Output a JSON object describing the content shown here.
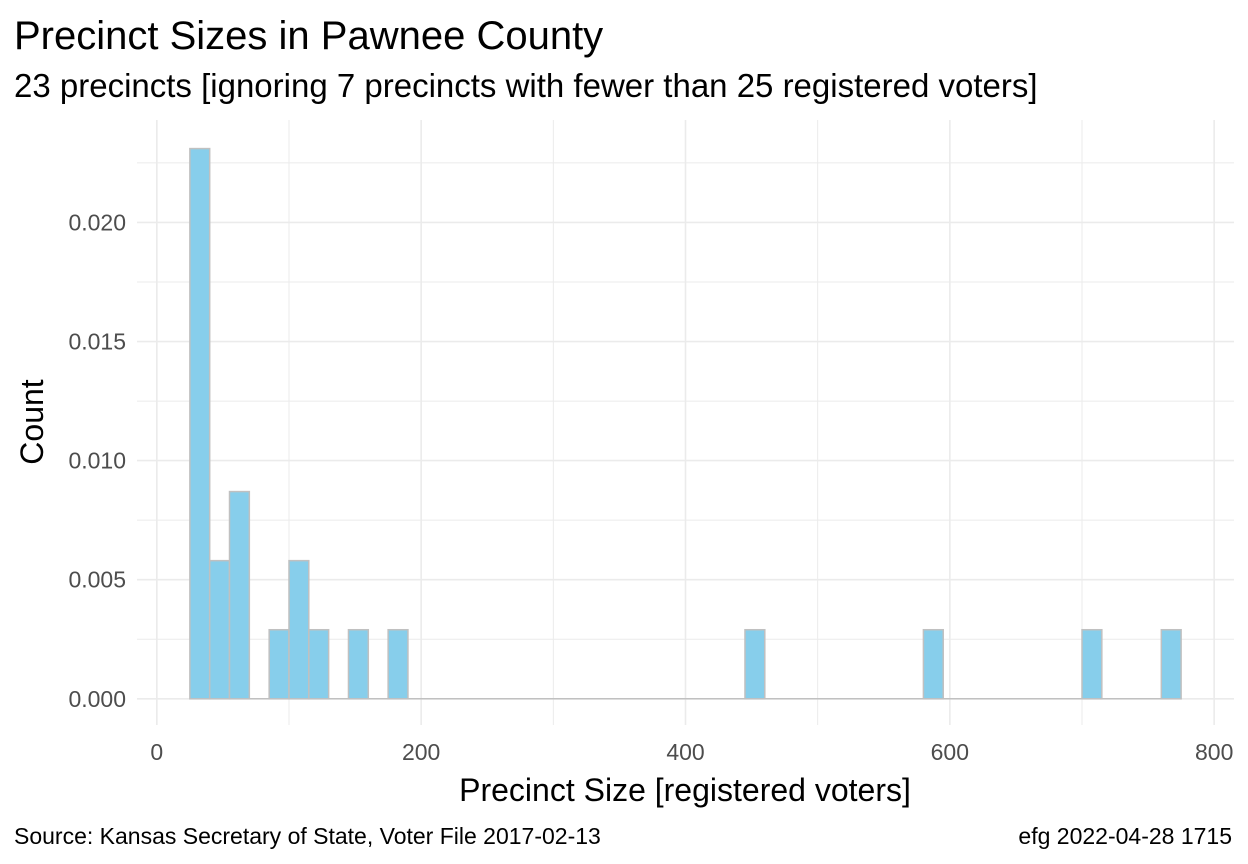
{
  "chart_data": {
    "type": "bar",
    "title": "Precinct Sizes in Pawnee County",
    "subtitle": "23 precincts [ignoring 7 precincts with fewer than 25 registered voters]",
    "xlabel": "Precinct Size [registered voters]",
    "ylabel": "Count",
    "xlim": [
      -15,
      815
    ],
    "ylim": [
      -0.0011,
      0.0243
    ],
    "x_ticks": [
      0,
      200,
      400,
      600,
      800
    ],
    "x_tick_labels": [
      "0",
      "200",
      "400",
      "600",
      "800"
    ],
    "y_ticks": [
      0,
      0.005,
      0.01,
      0.015,
      0.02
    ],
    "y_tick_labels": [
      "0.000",
      "0.005",
      "0.010",
      "0.015",
      "0.020"
    ],
    "bin_width": 15,
    "bins": [
      {
        "x0": 25,
        "x1": 40,
        "value": 0.0231
      },
      {
        "x0": 40,
        "x1": 55,
        "value": 0.0058
      },
      {
        "x0": 55,
        "x1": 70,
        "value": 0.0087
      },
      {
        "x0": 85,
        "x1": 100,
        "value": 0.0029
      },
      {
        "x0": 100,
        "x1": 115,
        "value": 0.0058
      },
      {
        "x0": 115,
        "x1": 130,
        "value": 0.0029
      },
      {
        "x0": 145,
        "x1": 160,
        "value": 0.0029
      },
      {
        "x0": 175,
        "x1": 190,
        "value": 0.0029
      },
      {
        "x0": 445,
        "x1": 460,
        "value": 0.0029
      },
      {
        "x0": 580,
        "x1": 595,
        "value": 0.0029
      },
      {
        "x0": 700,
        "x1": 715,
        "value": 0.0029
      },
      {
        "x0": 760,
        "x1": 775,
        "value": 0.0029
      }
    ],
    "grid": true,
    "colors": {
      "fill": "#87ceeb",
      "outline": "#c0c0c0",
      "grid": "#ebebeb",
      "baseline": "#c0c0c0"
    }
  },
  "caption": {
    "source": "Source:  Kansas Secretary of State, Voter File  2017-02-13",
    "stamp": "efg 2022-04-28 1715"
  }
}
